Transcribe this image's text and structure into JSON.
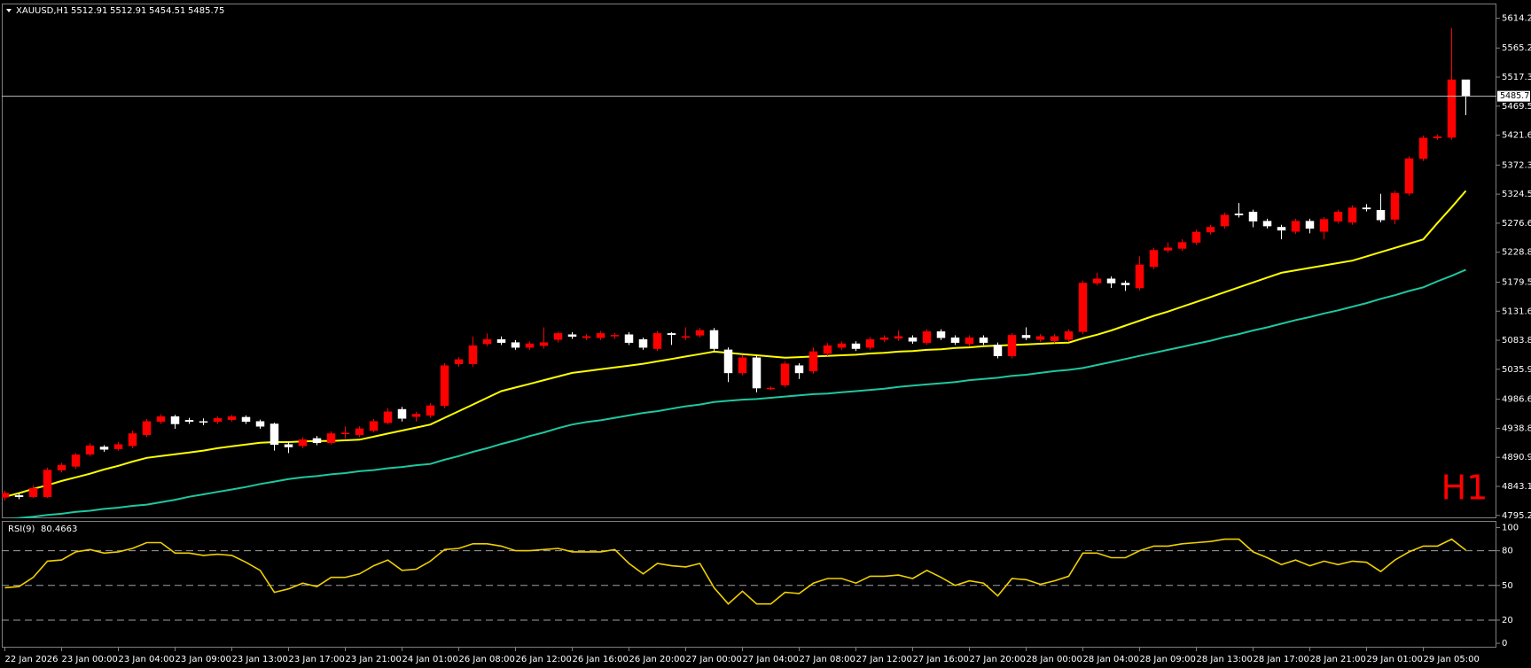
{
  "chart_data": [
    {
      "type": "candlestick",
      "title": "XAUUSD,H1",
      "watermark": "H1",
      "categories": [
        "22 Jan 2026",
        null,
        null,
        null,
        "23 Jan 00:00",
        null,
        null,
        null,
        "23 Jan 04:00",
        null,
        null,
        null,
        "23 Jan 09:00",
        null,
        null,
        null,
        "23 Jan 13:00",
        null,
        null,
        null,
        "23 Jan 17:00",
        null,
        null,
        null,
        "23 Jan 21:00",
        null,
        null,
        null,
        "24 Jan 01:00",
        null,
        null,
        null,
        "26 Jan 08:00",
        null,
        null,
        null,
        "26 Jan 12:00",
        null,
        null,
        null,
        "26 Jan 16:00",
        null,
        null,
        null,
        "26 Jan 20:00",
        null,
        null,
        null,
        "27 Jan 00:00",
        null,
        null,
        null,
        "27 Jan 04:00",
        null,
        null,
        null,
        "27 Jan 08:00",
        null,
        null,
        null,
        "27 Jan 12:00",
        null,
        null,
        null,
        "27 Jan 16:00",
        null,
        null,
        null,
        "27 Jan 20:00",
        null,
        null,
        null,
        "28 Jan 00:00",
        null,
        null,
        null,
        "28 Jan 04:00",
        null,
        null,
        null,
        "28 Jan 09:00",
        null,
        null,
        null,
        "28 Jan 13:00",
        null,
        null,
        null,
        "28 Jan 17:00",
        null,
        null,
        null,
        "28 Jan 21:00",
        null,
        null,
        null,
        "29 Jan 01:00",
        null,
        null,
        null,
        "29 Jan 05:00",
        null,
        null,
        null
      ],
      "open": [
        4825,
        4828,
        4826,
        4826,
        4870,
        4876,
        4896,
        4908,
        4905,
        4910,
        4928,
        4950,
        4958,
        4952,
        4950,
        4950,
        4953,
        4957,
        4950,
        4946,
        4912,
        4910,
        4922,
        4915,
        4930,
        4928,
        4935,
        4948,
        4970,
        4958,
        4960,
        4976,
        5045,
        5045,
        5078,
        5085,
        5080,
        5072,
        5075,
        5085,
        5093,
        5088,
        5088,
        5092,
        5093,
        5085,
        5070,
        5095,
        5090,
        5092,
        5100,
        5068,
        5030,
        5055,
        5005,
        5010,
        5042,
        5033,
        5062,
        5072,
        5078,
        5072,
        5085,
        5087,
        5088,
        5080,
        5098,
        5088,
        5078,
        5088,
        5076,
        5058,
        5092,
        5085,
        5083,
        5085,
        5098,
        5178,
        5185,
        5178,
        5170,
        5205,
        5232,
        5235,
        5245,
        5262,
        5272,
        5292,
        5295,
        5280,
        5270,
        5263,
        5280,
        5263,
        5280,
        5278,
        5302,
        5298,
        5283,
        5326,
        5383,
        5417,
        5418,
        5512.91
      ],
      "high": [
        4836,
        4832,
        4845,
        4874,
        4882,
        4898,
        4914,
        4911,
        4916,
        4935,
        4954,
        4962,
        4961,
        4956,
        4955,
        4958,
        4961,
        4960,
        4953,
        4948,
        4916,
        4924,
        4926,
        4934,
        4942,
        4942,
        4954,
        4972,
        4974,
        4966,
        4980,
        5046,
        5056,
        5090,
        5095,
        5090,
        5084,
        5082,
        5105,
        5098,
        5097,
        5094,
        5099,
        5096,
        5097,
        5088,
        5099,
        5097,
        5105,
        5104,
        5104,
        5072,
        5059,
        5059,
        5008,
        5049,
        5046,
        5072,
        5079,
        5082,
        5082,
        5089,
        5092,
        5100,
        5092,
        5102,
        5102,
        5092,
        5092,
        5092,
        5080,
        5096,
        5105,
        5094,
        5094,
        5102,
        5182,
        5195,
        5189,
        5182,
        5222,
        5236,
        5245,
        5250,
        5266,
        5274,
        5294,
        5310,
        5299,
        5284,
        5274,
        5284,
        5284,
        5287,
        5299,
        5306,
        5308,
        5325,
        5330,
        5387,
        5421,
        5423,
        5598,
        5512.91
      ],
      "low": [
        4820,
        4822,
        4824,
        4824,
        4866,
        4872,
        4893,
        4900,
        4902,
        4906,
        4924,
        4946,
        4938,
        4946,
        4944,
        4946,
        4950,
        4946,
        4938,
        4902,
        4898,
        4906,
        4911,
        4912,
        4922,
        4924,
        4932,
        4945,
        4950,
        4950,
        4956,
        4972,
        5040,
        5040,
        5074,
        5076,
        5068,
        5068,
        5070,
        5080,
        5086,
        5084,
        5084,
        5086,
        5076,
        5068,
        5066,
        5076,
        5084,
        5088,
        5066,
        5015,
        5026,
        4998,
        5002,
        5006,
        5020,
        5029,
        5058,
        5068,
        5066,
        5068,
        5081,
        5083,
        5078,
        5076,
        5084,
        5076,
        5074,
        5076,
        5054,
        5054,
        5084,
        5081,
        5079,
        5081,
        5094,
        5174,
        5170,
        5165,
        5166,
        5201,
        5228,
        5231,
        5241,
        5258,
        5268,
        5286,
        5270,
        5268,
        5250,
        5259,
        5260,
        5250,
        5276,
        5274,
        5296,
        5278,
        5275,
        5322,
        5379,
        5414,
        5414,
        5454.51
      ],
      "close": [
        4832,
        4826,
        4840,
        4870,
        4878,
        4895,
        4910,
        4904,
        4912,
        4930,
        4950,
        4958,
        4946,
        4950,
        4949,
        4955,
        4958,
        4950,
        4942,
        4912,
        4908,
        4920,
        4915,
        4930,
        4931,
        4938,
        4950,
        4966,
        4955,
        4962,
        4976,
        5042,
        5052,
        5075,
        5085,
        5080,
        5072,
        5078,
        5080,
        5095,
        5090,
        5090,
        5095,
        5092,
        5080,
        5072,
        5095,
        5093,
        5090,
        5100,
        5070,
        5030,
        5055,
        5005,
        5005,
        5045,
        5030,
        5065,
        5075,
        5078,
        5070,
        5085,
        5088,
        5090,
        5082,
        5098,
        5088,
        5080,
        5088,
        5080,
        5058,
        5092,
        5088,
        5090,
        5090,
        5098,
        5178,
        5185,
        5178,
        5175,
        5208,
        5232,
        5236,
        5245,
        5262,
        5270,
        5290,
        5290,
        5280,
        5272,
        5265,
        5280,
        5268,
        5283,
        5295,
        5302,
        5300,
        5282,
        5326,
        5383,
        5417,
        5419,
        5512.91,
        5485.75
      ],
      "up_color": "#ff0000",
      "down_color": "#ffffff",
      "series": [
        {
          "color": "#ffff00",
          "values": [
            4826,
            4832,
            4839,
            4845,
            4852,
            4858,
            4864,
            4871,
            4877,
            4884,
            4890,
            4893,
            4896,
            4899,
            4902,
            4906,
            4909,
            4912,
            4915,
            4916,
            4916,
            4917,
            4918,
            4918,
            4919,
            4920,
            4925,
            4930,
            4935,
            4940,
            4945,
            4956,
            4967,
            4978,
            4989,
            5000,
            5006,
            5012,
            5018,
            5024,
            5030,
            5033,
            5036,
            5039,
            5042,
            5045,
            5049,
            5053,
            5057,
            5061,
            5065,
            5063,
            5061,
            5059,
            5057,
            5055,
            5056,
            5057,
            5058,
            5059,
            5060,
            5062,
            5063,
            5065,
            5066,
            5068,
            5069,
            5071,
            5072,
            5074,
            5075,
            5076,
            5077,
            5078,
            5079,
            5080,
            5087,
            5093,
            5100,
            5108,
            5116,
            5124,
            5131,
            5139,
            5147,
            5155,
            5163,
            5171,
            5179,
            5187,
            5195,
            5199,
            5203,
            5207,
            5211,
            5215,
            5222,
            5229,
            5236,
            5243,
            5250,
            5277,
            5303,
            5330
          ]
        },
        {
          "color": "#1ec8a0",
          "values": [
            4788,
            4791,
            4793,
            4796,
            4798,
            4801,
            4803,
            4806,
            4808,
            4811,
            4813,
            4817,
            4821,
            4826,
            4830,
            4834,
            4838,
            4842,
            4847,
            4851,
            4855,
            4858,
            4860,
            4863,
            4865,
            4868,
            4870,
            4873,
            4875,
            4878,
            4880,
            4887,
            4893,
            4900,
            4906,
            4913,
            4919,
            4926,
            4932,
            4939,
            4945,
            4949,
            4952,
            4956,
            4960,
            4964,
            4967,
            4971,
            4975,
            4978,
            4982,
            4984,
            4986,
            4987,
            4989,
            4991,
            4993,
            4995,
            4996,
            4998,
            5000,
            5002,
            5004,
            5007,
            5009,
            5011,
            5013,
            5015,
            5018,
            5020,
            5022,
            5025,
            5027,
            5030,
            5033,
            5035,
            5038,
            5043,
            5048,
            5053,
            5058,
            5063,
            5068,
            5073,
            5078,
            5083,
            5089,
            5094,
            5100,
            5105,
            5111,
            5117,
            5122,
            5128,
            5133,
            5139,
            5145,
            5152,
            5158,
            5165,
            5171,
            5181,
            5190,
            5200
          ]
        }
      ],
      "ylim": [
        4792,
        5637
      ],
      "yticks": [
        {
          "value": 5614.2,
          "label": "5614.20"
        },
        {
          "value": 5565.2,
          "label": "5565.20"
        },
        5517.35,
        {
          "value": 5469.5,
          "label": "5469.50"
        },
        5421.65,
        5372.35,
        {
          "value": 5324.5,
          "label": "5324.50"
        },
        5276.65,
        {
          "value": 5228.8,
          "label": "5228.80"
        },
        {
          "value": 5179.5,
          "label": "5179.50"
        },
        5131.65,
        {
          "value": 5083.8,
          "label": "5083.80"
        },
        5035.95,
        4986.65,
        {
          "value": 4938.8,
          "label": "4938.80"
        },
        4890.95,
        {
          "value": 4843.1,
          "label": "4843.10"
        },
        4795.25
      ]
    },
    {
      "type": "line",
      "title": "RSI(9)",
      "color": "#f0d000",
      "values": [
        48,
        49,
        57,
        71,
        72,
        79,
        81,
        78,
        79,
        82,
        87,
        87,
        78,
        78,
        76,
        77,
        76,
        70,
        63,
        44,
        47,
        52,
        49,
        57,
        57,
        60,
        67,
        72,
        63,
        64,
        71,
        81,
        82,
        86,
        86,
        84,
        80,
        80,
        81,
        82,
        79,
        79,
        79,
        81,
        69,
        60,
        69,
        67,
        66,
        69,
        48,
        34,
        45,
        34,
        34,
        44,
        43,
        52,
        56,
        56,
        52,
        58,
        58,
        59,
        56,
        63,
        57,
        50,
        54,
        52,
        41,
        56,
        55,
        51,
        54,
        58,
        78,
        78,
        74,
        74,
        80,
        84,
        84,
        86,
        87,
        88,
        90,
        90,
        79,
        74,
        68,
        72,
        67,
        71,
        68,
        71,
        70,
        62,
        72,
        79,
        84,
        84,
        90,
        80.4663
      ],
      "ylim": [
        -3,
        105
      ],
      "yticks": [
        100,
        80,
        50,
        20,
        0
      ],
      "levels": [
        80,
        50,
        20
      ]
    }
  ]
}
